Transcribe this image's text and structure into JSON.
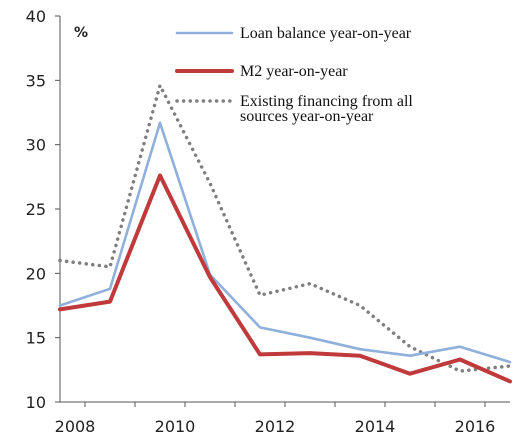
{
  "chart_data": {
    "type": "line",
    "unit_label": "%",
    "x": [
      2007.5,
      2008.5,
      2009.5,
      2010.5,
      2011.5,
      2012.5,
      2013.5,
      2014.5,
      2015.5,
      2016.5
    ],
    "x_tick_labels": [
      "2008",
      "2010",
      "2012",
      "2014",
      "2016"
    ],
    "x_tick_values": [
      2007.8,
      2009.8,
      2011.8,
      2013.8,
      2015.8
    ],
    "xlim": [
      2007.5,
      2016.5
    ],
    "ylim": [
      10,
      40
    ],
    "y_ticks": [
      10,
      15,
      20,
      25,
      30,
      35,
      40
    ],
    "grid": false,
    "legend_position": "top-right",
    "series": [
      {
        "name": "Loan balance year-on-year",
        "color": "#8fb0db",
        "style": "solid",
        "values": [
          17.5,
          18.8,
          31.7,
          19.9,
          15.8,
          15.0,
          14.1,
          13.6,
          14.3,
          13.1
        ]
      },
      {
        "name": "M2 year-on-year",
        "color": "#c0393b",
        "style": "solid",
        "values": [
          17.2,
          17.8,
          27.6,
          19.7,
          13.7,
          13.8,
          13.6,
          12.2,
          13.3,
          11.6
        ]
      },
      {
        "name": "Existing financing from all sources year-on-year",
        "legend_lines": [
          "Existing financing from all",
          "sources year-on-year"
        ],
        "color": "#7f7f7f",
        "style": "dotted",
        "values": [
          21.0,
          20.5,
          34.6,
          27.0,
          18.3,
          19.2,
          17.5,
          14.3,
          12.4,
          12.8
        ]
      }
    ]
  }
}
